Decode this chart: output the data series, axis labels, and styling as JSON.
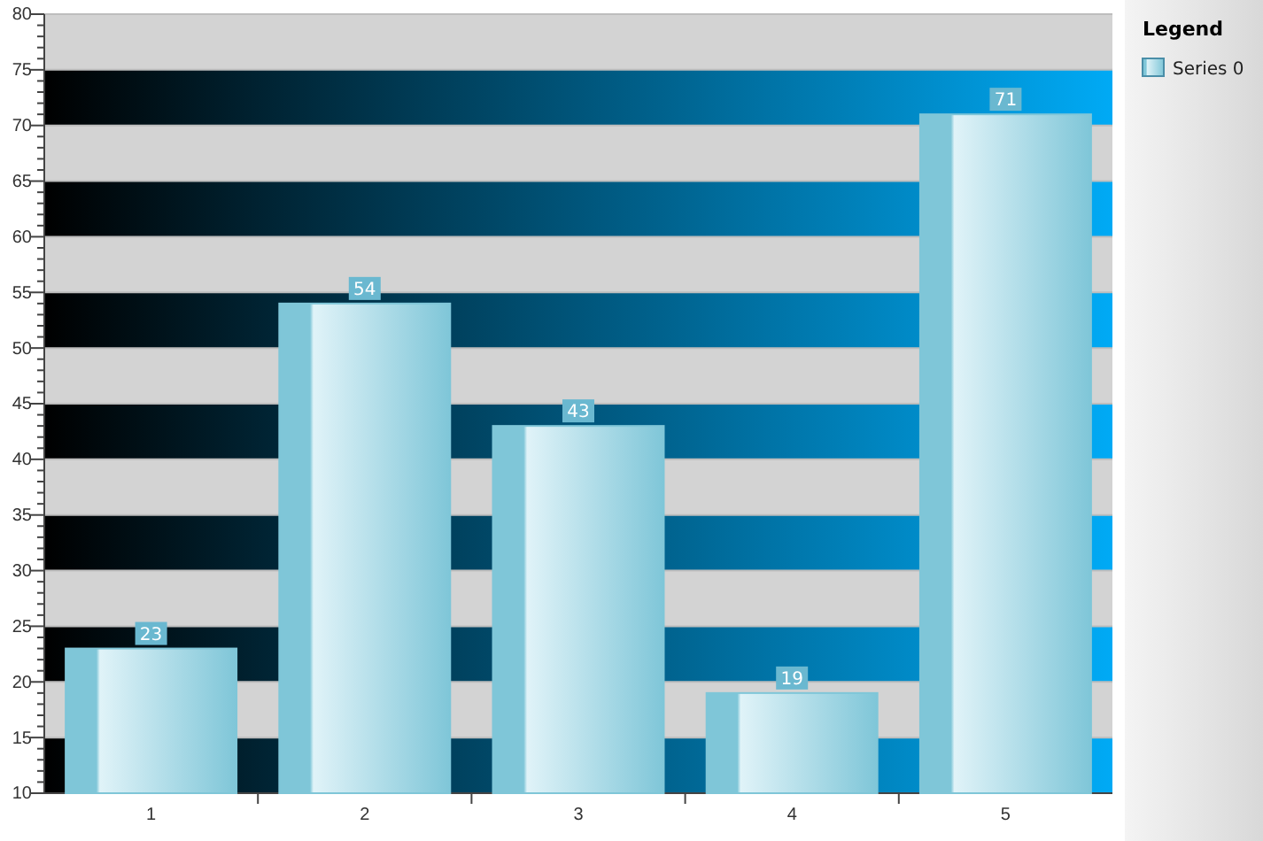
{
  "chart_data": {
    "type": "bar",
    "legend_title": "Legend",
    "categories": [
      "1",
      "2",
      "3",
      "4",
      "5"
    ],
    "series": [
      {
        "name": "Series 0",
        "color": "#7fc6d8",
        "values": [
          23,
          54,
          43,
          19,
          71
        ]
      }
    ],
    "ylim": [
      10,
      80
    ],
    "yticks": [
      10,
      {
        "value": 11,
        "label": null
      },
      {
        "value": 12,
        "label": null
      },
      {
        "value": 13,
        "label": null
      },
      {
        "value": 14,
        "label": null
      },
      15,
      {
        "value": 16,
        "label": null
      },
      {
        "value": 17,
        "label": null
      },
      {
        "value": 18,
        "label": null
      },
      {
        "value": 19,
        "label": null
      },
      20,
      {
        "value": 21,
        "label": null
      },
      {
        "value": 22,
        "label": null
      },
      {
        "value": 23,
        "label": null
      },
      {
        "value": 24,
        "label": null
      },
      25,
      {
        "value": 26,
        "label": null
      },
      {
        "value": 27,
        "label": null
      },
      {
        "value": 28,
        "label": null
      },
      {
        "value": 29,
        "label": null
      },
      30,
      {
        "value": 31,
        "label": null
      },
      {
        "value": 32,
        "label": null
      },
      {
        "value": 33,
        "label": null
      },
      {
        "value": 34,
        "label": null
      },
      35,
      {
        "value": 36,
        "label": null
      },
      {
        "value": 37,
        "label": null
      },
      {
        "value": 38,
        "label": null
      },
      {
        "value": 39,
        "label": null
      },
      40,
      {
        "value": 41,
        "label": null
      },
      {
        "value": 42,
        "label": null
      },
      {
        "value": 43,
        "label": null
      },
      {
        "value": 44,
        "label": null
      },
      45,
      {
        "value": 46,
        "label": null
      },
      {
        "value": 47,
        "label": null
      },
      {
        "value": 48,
        "label": null
      },
      {
        "value": 49,
        "label": null
      },
      50,
      {
        "value": 51,
        "label": null
      },
      {
        "value": 52,
        "label": null
      },
      {
        "value": 53,
        "label": null
      },
      {
        "value": 54,
        "label": null
      },
      55,
      {
        "value": 56,
        "label": null
      },
      {
        "value": 57,
        "label": null
      },
      {
        "value": 58,
        "label": null
      },
      {
        "value": 59,
        "label": null
      },
      60,
      {
        "value": 61,
        "label": null
      },
      {
        "value": 62,
        "label": null
      },
      {
        "value": 63,
        "label": null
      },
      {
        "value": 64,
        "label": null
      },
      65,
      {
        "value": 66,
        "label": null
      },
      {
        "value": 67,
        "label": null
      },
      {
        "value": 68,
        "label": null
      },
      {
        "value": 69,
        "label": null
      },
      70,
      {
        "value": 71,
        "label": null
      },
      {
        "value": 72,
        "label": null
      },
      {
        "value": 73,
        "label": null
      },
      {
        "value": 74,
        "label": null
      },
      75,
      {
        "value": 76,
        "label": null
      },
      {
        "value": 77,
        "label": null
      },
      {
        "value": 78,
        "label": null
      },
      {
        "value": 79,
        "label": null
      },
      80
    ],
    "bands": [
      {
        "axis": "y",
        "from": 10,
        "to": 15
      },
      {
        "axis": "y",
        "from": 20,
        "to": 25
      },
      {
        "axis": "y",
        "from": 30,
        "to": 35
      },
      {
        "axis": "y",
        "from": 40,
        "to": 45
      },
      {
        "axis": "y",
        "from": 50,
        "to": 55
      },
      {
        "axis": "y",
        "from": 60,
        "to": 65
      },
      {
        "axis": "y",
        "from": 70,
        "to": 75
      }
    ],
    "grid": "y",
    "data_labels": true,
    "legend": "right"
  }
}
